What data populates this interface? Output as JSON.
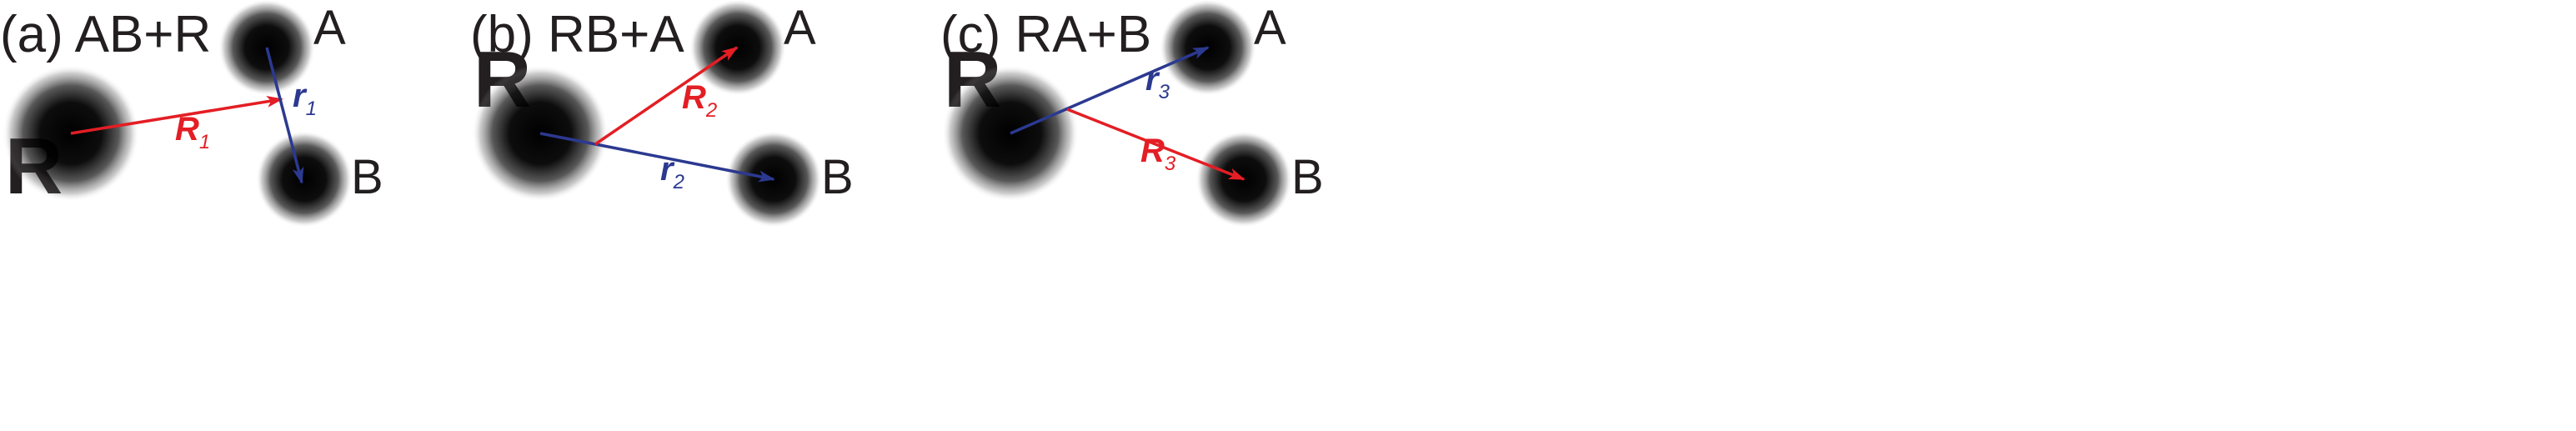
{
  "colors": {
    "red": "#e31e24",
    "blue": "#2b3990",
    "text": "#231f20",
    "atom": "#000000"
  },
  "panels": [
    {
      "title": "(a) AB+R",
      "big_label": "R",
      "atom_a": "A",
      "atom_b": "B",
      "vector_big": {
        "main": "R",
        "sub": "1",
        "color": "red"
      },
      "vector_small": {
        "main": "r",
        "sub": "1",
        "color": "blue"
      }
    },
    {
      "title": "(b) RB+A",
      "big_label": "R",
      "atom_a": "A",
      "atom_b": "B",
      "vector_big": {
        "main": "R",
        "sub": "2",
        "color": "red"
      },
      "vector_small": {
        "main": "r",
        "sub": "2",
        "color": "blue"
      }
    },
    {
      "title": "(c) RA+B",
      "big_label": "R",
      "atom_a": "A",
      "atom_b": "B",
      "vector_big": {
        "main": "R",
        "sub": "3",
        "color": "red"
      },
      "vector_small": {
        "main": "r",
        "sub": "3",
        "color": "blue"
      }
    }
  ]
}
